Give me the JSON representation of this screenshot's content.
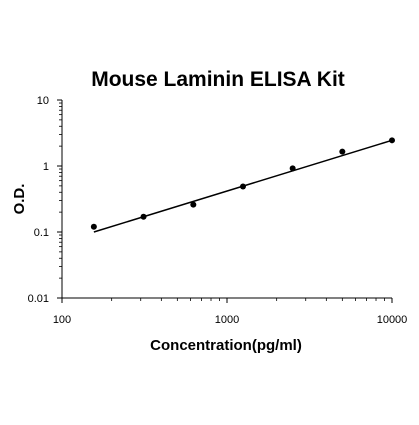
{
  "chart_data": {
    "type": "scatter",
    "title": "Mouse Laminin ELISA Kit",
    "xlabel": "Concentration(pg/ml)",
    "ylabel": "O.D.",
    "x_scale": "log",
    "y_scale": "log",
    "xlim": [
      100,
      10000
    ],
    "ylim": [
      0.01,
      10
    ],
    "x_ticks": [
      100,
      1000,
      10000
    ],
    "x_tick_labels": [
      "100",
      "1000",
      "10000"
    ],
    "y_ticks": [
      0.01,
      0.1,
      1,
      10
    ],
    "y_tick_labels": [
      "0.01",
      "0.1",
      "1",
      "10"
    ],
    "grid": false,
    "series": [
      {
        "points": [
          {
            "x": 156,
            "y": 0.12
          },
          {
            "x": 312,
            "y": 0.17
          },
          {
            "x": 625,
            "y": 0.26
          },
          {
            "x": 1250,
            "y": 0.49
          },
          {
            "x": 2500,
            "y": 0.92
          },
          {
            "x": 5000,
            "y": 1.65
          },
          {
            "x": 10000,
            "y": 2.45
          }
        ]
      }
    ],
    "fit_line": {
      "x": [
        156,
        10000
      ],
      "y": [
        0.1,
        2.45
      ]
    }
  },
  "colors": {
    "marker": "#000000",
    "line": "#000000",
    "axis": "#000000"
  }
}
